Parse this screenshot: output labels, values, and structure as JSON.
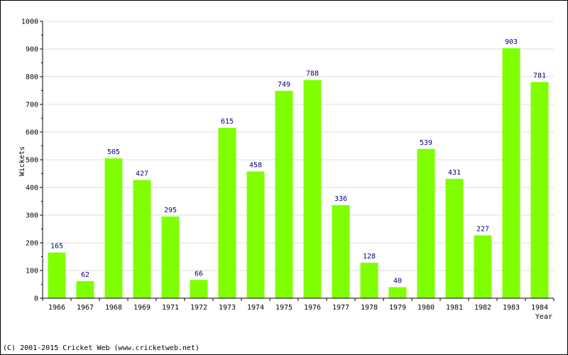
{
  "chart_data": {
    "type": "bar",
    "categories": [
      "1966",
      "1967",
      "1968",
      "1969",
      "1971",
      "1972",
      "1973",
      "1974",
      "1975",
      "1976",
      "1977",
      "1978",
      "1979",
      "1980",
      "1981",
      "1982",
      "1983",
      "1984"
    ],
    "values": [
      165,
      62,
      505,
      427,
      295,
      66,
      615,
      458,
      749,
      788,
      336,
      128,
      40,
      539,
      431,
      227,
      903,
      781
    ],
    "xlabel": "Year",
    "ylabel": "Wickets",
    "ylim": [
      0,
      1000
    ],
    "yticks": [
      0,
      100,
      200,
      300,
      400,
      500,
      600,
      700,
      800,
      900,
      1000
    ],
    "grid": true,
    "bar_color": "#80ff00",
    "label_color": "#000080"
  },
  "footer": "(C) 2001-2015 Cricket Web (www.cricketweb.net)"
}
